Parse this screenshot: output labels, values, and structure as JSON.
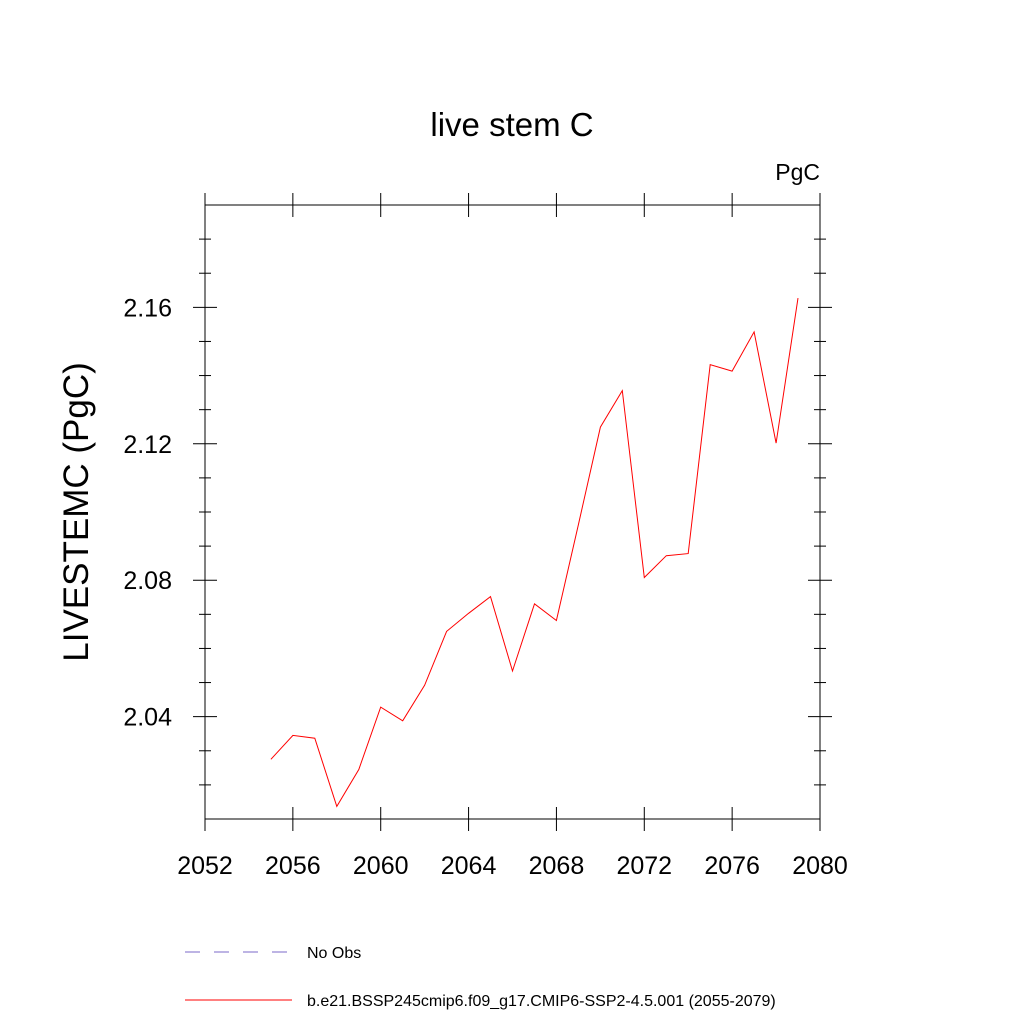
{
  "chart_data": {
    "type": "line",
    "title": "live stem C",
    "units_label": "PgC",
    "ylabel": "LIVESTEMC  (PgC)",
    "xlabel": "",
    "xlim": [
      2052,
      2080
    ],
    "ylim": [
      2.01,
      2.19
    ],
    "x_ticks": [
      2052,
      2056,
      2060,
      2064,
      2068,
      2072,
      2076,
      2080
    ],
    "x_tick_labels": [
      "2052",
      "2056",
      "2060",
      "2064",
      "2068",
      "2072",
      "2076",
      "2080"
    ],
    "y_ticks": [
      2.04,
      2.08,
      2.12,
      2.16
    ],
    "y_tick_labels": [
      "2.04",
      "2.08",
      "2.12",
      "2.16"
    ],
    "grid": false,
    "legend_position": "bottom",
    "series": [
      {
        "name": "b.e21.BSSP245cmip6.f09_g17.CMIP6-SSP2-4.5.001 (2055-2079)",
        "color": "#ff0000",
        "style": "solid",
        "x": [
          2055,
          2056,
          2057,
          2058,
          2059,
          2060,
          2061,
          2062,
          2063,
          2064,
          2065,
          2066,
          2067,
          2068,
          2069,
          2070,
          2071,
          2072,
          2073,
          2074,
          2075,
          2076,
          2077,
          2078,
          2079
        ],
        "y": [
          2.0275,
          2.0345,
          2.0337,
          2.0137,
          2.0245,
          2.0428,
          2.0388,
          2.0492,
          2.065,
          2.0703,
          2.0752,
          2.0534,
          2.0731,
          2.0682,
          2.0963,
          2.1249,
          2.1356,
          2.0808,
          2.0872,
          2.0878,
          2.1432,
          2.1413,
          2.1528,
          2.1202,
          2.1627
        ]
      }
    ],
    "legend": [
      {
        "label": "No Obs",
        "color": "#7b68c8",
        "style": "dashed"
      },
      {
        "label": "b.e21.BSSP245cmip6.f09_g17.CMIP6-SSP2-4.5.001 (2055-2079)",
        "color": "#ff0000",
        "style": "solid"
      }
    ]
  }
}
